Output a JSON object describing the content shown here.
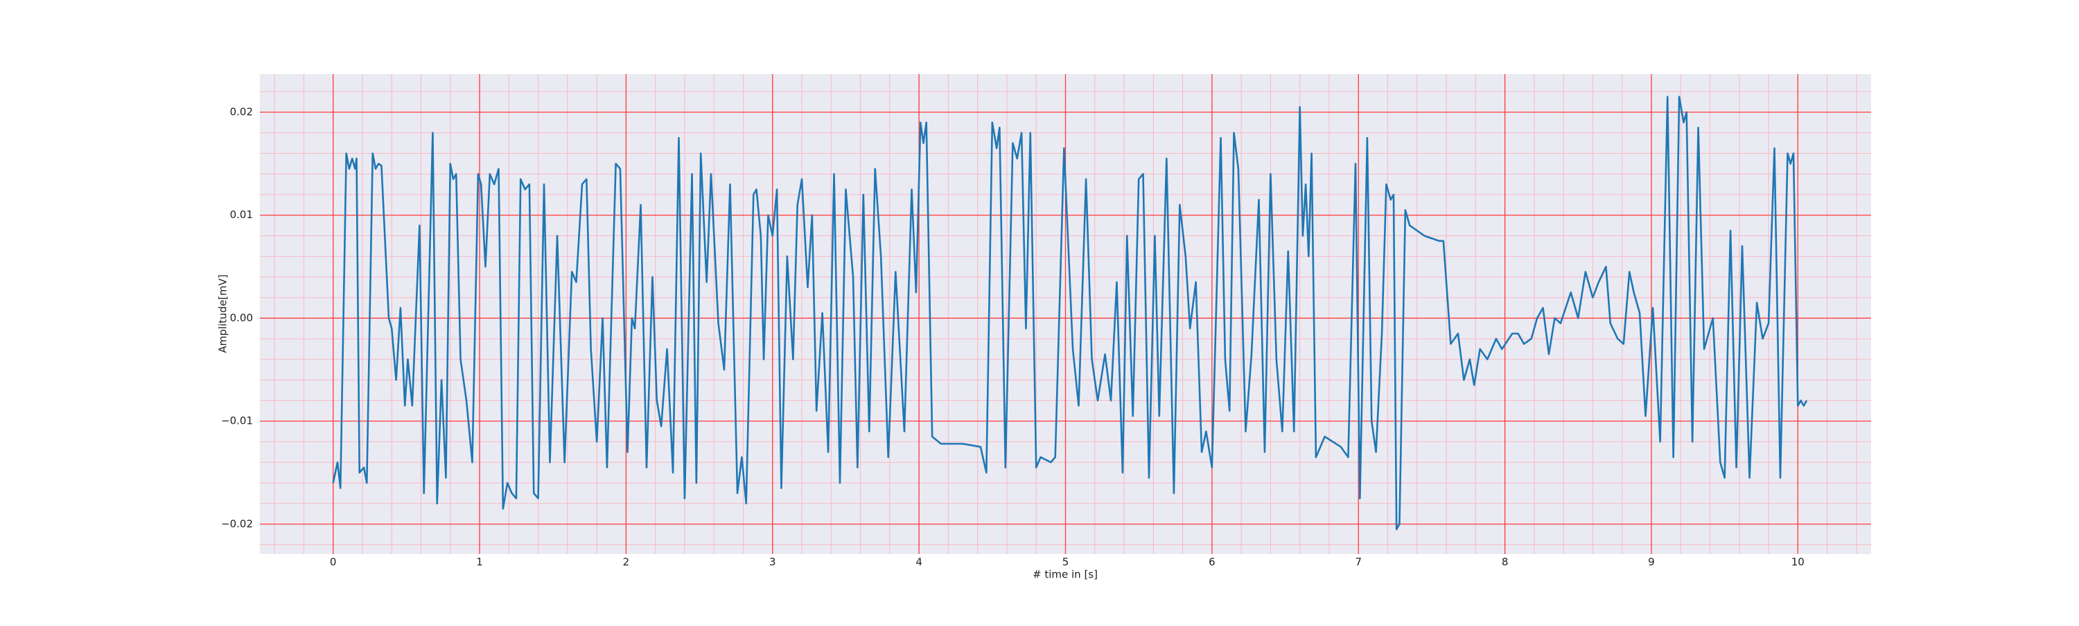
{
  "chart_data": {
    "type": "line",
    "xlabel": "# time in [s]",
    "ylabel": "Amplitude[mV]",
    "color": "#1f77b4",
    "background": "#eaeaf2",
    "grid": true,
    "grid_color": "#ff3b3b",
    "minor_grid": {
      "xstep": 0.2,
      "ystep": 0.002,
      "color": "#f7b8c4"
    },
    "xlim": [
      -0.5,
      10.5
    ],
    "ylim": [
      -0.0229,
      0.0237
    ],
    "xticks": [
      0,
      1,
      2,
      3,
      4,
      5,
      6,
      7,
      8,
      9,
      10
    ],
    "yticks": [
      {
        "value": -0.02,
        "label": "−0.02"
      },
      {
        "value": -0.01,
        "label": "−0.01"
      },
      {
        "value": 0,
        "label": "0.00"
      },
      0.01,
      0.02
    ],
    "x": [
      0.0,
      0.03,
      0.05,
      0.09,
      0.11,
      0.13,
      0.15,
      0.16,
      0.18,
      0.21,
      0.23,
      0.27,
      0.29,
      0.31,
      0.33,
      0.38,
      0.4,
      0.43,
      0.46,
      0.49,
      0.51,
      0.54,
      0.59,
      0.62,
      0.68,
      0.71,
      0.74,
      0.77,
      0.8,
      0.82,
      0.84,
      0.87,
      0.91,
      0.95,
      0.99,
      1.01,
      1.04,
      1.07,
      1.1,
      1.13,
      1.16,
      1.19,
      1.22,
      1.25,
      1.28,
      1.31,
      1.34,
      1.37,
      1.4,
      1.44,
      1.48,
      1.53,
      1.58,
      1.63,
      1.66,
      1.7,
      1.73,
      1.76,
      1.8,
      1.84,
      1.87,
      1.93,
      1.96,
      2.01,
      2.04,
      2.06,
      2.1,
      2.14,
      2.18,
      2.21,
      2.24,
      2.28,
      2.32,
      2.36,
      2.4,
      2.45,
      2.48,
      2.51,
      2.55,
      2.58,
      2.63,
      2.67,
      2.71,
      2.76,
      2.79,
      2.82,
      2.87,
      2.89,
      2.92,
      2.94,
      2.97,
      3.0,
      3.03,
      3.06,
      3.1,
      3.14,
      3.17,
      3.2,
      3.24,
      3.27,
      3.3,
      3.34,
      3.38,
      3.42,
      3.46,
      3.5,
      3.55,
      3.58,
      3.62,
      3.66,
      3.7,
      3.74,
      3.79,
      3.84,
      3.9,
      3.95,
      3.98,
      4.01,
      4.03,
      4.05,
      4.09,
      4.15,
      4.3,
      4.42,
      4.46,
      4.5,
      4.53,
      4.55,
      4.59,
      4.64,
      4.67,
      4.7,
      4.73,
      4.76,
      4.8,
      4.83,
      4.9,
      4.93,
      4.99,
      5.05,
      5.09,
      5.14,
      5.18,
      5.22,
      5.27,
      5.31,
      5.35,
      5.39,
      5.42,
      5.46,
      5.5,
      5.53,
      5.57,
      5.61,
      5.64,
      5.69,
      5.74,
      5.78,
      5.82,
      5.85,
      5.89,
      5.93,
      5.96,
      6.0,
      6.06,
      6.09,
      6.12,
      6.15,
      6.18,
      6.23,
      6.27,
      6.32,
      6.36,
      6.4,
      6.44,
      6.48,
      6.52,
      6.56,
      6.6,
      6.62,
      6.64,
      6.66,
      6.68,
      6.71,
      6.77,
      6.88,
      6.93,
      6.98,
      7.01,
      7.06,
      7.09,
      7.12,
      7.16,
      7.19,
      7.22,
      7.24,
      7.26,
      7.28,
      7.32,
      7.35,
      7.45,
      7.55,
      7.58,
      7.63,
      7.68,
      7.72,
      7.76,
      7.79,
      7.83,
      7.88,
      7.94,
      7.98,
      8.05,
      8.09,
      8.13,
      8.18,
      8.22,
      8.26,
      8.3,
      8.34,
      8.38,
      8.45,
      8.5,
      8.55,
      8.6,
      8.64,
      8.69,
      8.72,
      8.77,
      8.81,
      8.85,
      8.88,
      8.92,
      8.96,
      9.01,
      9.06,
      9.11,
      9.15,
      9.19,
      9.22,
      9.24,
      9.28,
      9.32,
      9.36,
      9.42,
      9.47,
      9.5,
      9.54,
      9.58,
      9.62,
      9.67,
      9.72,
      9.76,
      9.8,
      9.84,
      9.88,
      9.93,
      9.95,
      9.97,
      10.0,
      10.02,
      10.04,
      10.06
    ],
    "values": [
      -0.016,
      -0.014,
      -0.0165,
      0.016,
      0.0145,
      0.0155,
      0.0145,
      0.0155,
      -0.015,
      -0.0145,
      -0.016,
      0.016,
      0.0145,
      0.015,
      0.0148,
      0.0,
      -0.001,
      -0.006,
      0.001,
      -0.0085,
      -0.004,
      -0.0085,
      0.009,
      -0.017,
      0.018,
      -0.018,
      -0.006,
      -0.0155,
      0.015,
      0.0135,
      0.014,
      -0.004,
      -0.008,
      -0.014,
      0.014,
      0.013,
      0.005,
      0.014,
      0.013,
      0.0145,
      -0.0185,
      -0.016,
      -0.017,
      -0.0175,
      0.0135,
      0.0125,
      0.013,
      -0.017,
      -0.0175,
      0.013,
      -0.014,
      0.008,
      -0.014,
      0.0045,
      0.0035,
      0.013,
      0.0135,
      -0.003,
      -0.012,
      0.0,
      -0.0145,
      0.015,
      0.0145,
      -0.013,
      0.0,
      -0.001,
      0.011,
      -0.0145,
      0.004,
      -0.008,
      -0.0105,
      -0.003,
      -0.015,
      0.0175,
      -0.0175,
      0.014,
      -0.016,
      0.016,
      0.0035,
      0.014,
      -0.0005,
      -0.005,
      0.013,
      -0.017,
      -0.0135,
      -0.018,
      0.012,
      0.0125,
      0.008,
      -0.004,
      0.01,
      0.008,
      0.0125,
      -0.0165,
      0.006,
      -0.004,
      0.011,
      0.0135,
      0.003,
      0.01,
      -0.009,
      0.0005,
      -0.013,
      0.014,
      -0.016,
      0.0125,
      0.004,
      -0.0145,
      0.012,
      -0.011,
      0.0145,
      0.006,
      -0.0135,
      0.0045,
      -0.011,
      0.0125,
      0.0025,
      0.019,
      0.017,
      0.019,
      -0.0115,
      -0.0122,
      -0.0122,
      -0.0125,
      -0.015,
      0.019,
      0.0165,
      0.0185,
      -0.0145,
      0.017,
      0.0155,
      0.018,
      -0.001,
      0.018,
      -0.0145,
      -0.0135,
      -0.014,
      -0.0135,
      0.0165,
      -0.003,
      -0.0085,
      0.0135,
      -0.004,
      -0.008,
      -0.0035,
      -0.008,
      0.0035,
      -0.015,
      0.008,
      -0.0095,
      0.0135,
      0.014,
      -0.0155,
      0.008,
      -0.0095,
      0.0155,
      -0.017,
      0.011,
      0.006,
      -0.001,
      0.0035,
      -0.013,
      -0.011,
      -0.0145,
      0.0175,
      -0.004,
      -0.009,
      0.018,
      0.0145,
      -0.011,
      -0.0035,
      0.0115,
      -0.013,
      0.014,
      -0.004,
      -0.011,
      0.0065,
      -0.011,
      0.0205,
      0.008,
      0.013,
      0.006,
      0.016,
      -0.0135,
      -0.0115,
      -0.0125,
      -0.0135,
      0.015,
      -0.0175,
      0.0175,
      -0.01,
      -0.013,
      -0.0015,
      0.013,
      0.0115,
      0.012,
      -0.0205,
      -0.02,
      0.0105,
      0.009,
      0.008,
      0.0075,
      0.0075,
      -0.0025,
      -0.0015,
      -0.006,
      -0.004,
      -0.0065,
      -0.003,
      -0.004,
      -0.002,
      -0.003,
      -0.0015,
      -0.0015,
      -0.0025,
      -0.002,
      0.0,
      0.001,
      -0.0035,
      0.0,
      -0.0005,
      0.0025,
      0.0,
      0.0045,
      0.002,
      0.0035,
      0.005,
      -0.0005,
      -0.002,
      -0.0025,
      0.0045,
      0.0025,
      0.0005,
      -0.0095,
      0.001,
      -0.012,
      0.0215,
      -0.0135,
      0.0215,
      0.019,
      0.02,
      -0.012,
      0.0185,
      -0.003,
      0.0,
      -0.014,
      -0.0155,
      0.0085,
      -0.0145,
      0.007,
      -0.0155,
      0.0015,
      -0.002,
      -0.0005,
      0.0165,
      -0.0155,
      0.016,
      0.015,
      0.016,
      -0.0085,
      -0.008,
      -0.0085,
      -0.008
    ]
  }
}
